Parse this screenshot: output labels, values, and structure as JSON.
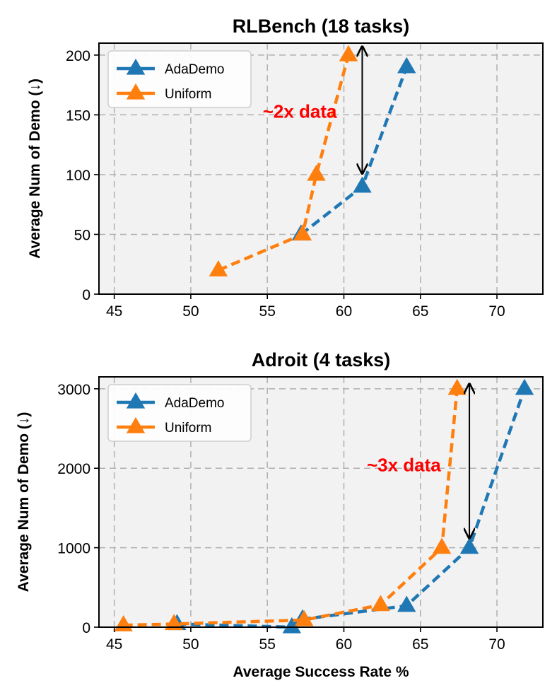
{
  "colors": {
    "adademo": "#1f77b4",
    "uniform": "#ff7f0e",
    "annotation": "#ff0000",
    "plot_background": "#f2f2f2",
    "grid": "#b0b0b0"
  },
  "chart_data": [
    {
      "type": "line",
      "title": "RLBench (18 tasks)",
      "xlabel": "",
      "ylabel": "Average Num of Demo (↓)",
      "xlim": [
        44,
        73
      ],
      "ylim": [
        0,
        210
      ],
      "x_ticks": [
        45,
        50,
        55,
        60,
        65,
        70
      ],
      "y_ticks": [
        0,
        50,
        100,
        150,
        200
      ],
      "grid": true,
      "legend_position": "top-left",
      "series": [
        {
          "name": "AdaDemo",
          "color": "#1f77b4",
          "linestyle": "dashed",
          "marker": "triangle",
          "x": [
            57.2,
            61.2,
            64.1
          ],
          "y": [
            50,
            90,
            190
          ]
        },
        {
          "name": "Uniform",
          "color": "#ff7f0e",
          "linestyle": "dashed",
          "marker": "triangle",
          "x": [
            51.8,
            57.3,
            58.2,
            60.3
          ],
          "y": [
            20,
            50,
            100,
            200
          ]
        }
      ],
      "annotation": {
        "text": "~2x data",
        "text_x": 54.7,
        "text_y": 153,
        "arrow_x": 61.2,
        "arrow_y_from": 207,
        "arrow_y_to": 101
      }
    },
    {
      "type": "line",
      "title": "Adroit (4 tasks)",
      "xlabel": "Average Success Rate %",
      "ylabel": "Average Num of Demo (↓)",
      "xlim": [
        44,
        73
      ],
      "ylim": [
        0,
        3150
      ],
      "x_ticks": [
        45,
        50,
        55,
        60,
        65,
        70
      ],
      "y_ticks": [
        0,
        1000,
        2000,
        3000
      ],
      "grid": true,
      "legend_position": "top-left",
      "series": [
        {
          "name": "AdaDemo",
          "color": "#1f77b4",
          "linestyle": "dashed",
          "marker": "triangle",
          "x": [
            49.1,
            56.6,
            57.3,
            64.1,
            68.2,
            71.8
          ],
          "y": [
            40,
            0,
            100,
            270,
            1000,
            3000
          ]
        },
        {
          "name": "Uniform",
          "color": "#ff7f0e",
          "linestyle": "dashed",
          "marker": "triangle",
          "x": [
            45.6,
            48.9,
            57.4,
            62.4,
            66.4,
            67.4
          ],
          "y": [
            25,
            40,
            90,
            280,
            1000,
            3000
          ]
        }
      ],
      "annotation": {
        "text": "~3x data",
        "text_x": 61.5,
        "text_y": 2040,
        "arrow_x": 68.2,
        "arrow_y_from": 3060,
        "arrow_y_to": 1120
      }
    }
  ]
}
